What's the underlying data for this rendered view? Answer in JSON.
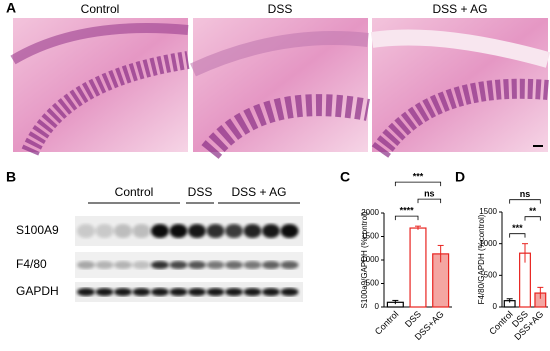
{
  "panel_labels": [
    "A",
    "B",
    "C",
    "D"
  ],
  "histology": {
    "titles": [
      "Control",
      "DSS",
      "DSS + AG"
    ]
  },
  "blot": {
    "groups": [
      "Control",
      "DSS",
      "DSS + AG"
    ],
    "rows": [
      "S100A9",
      "F4/80",
      "GAPDH"
    ]
  },
  "chart_data": [
    {
      "type": "bar",
      "y_label": "S100a9/GAPDH (%control)",
      "categories": [
        "Control",
        "DSS",
        "DSS+AG"
      ],
      "values": [
        100,
        1680,
        1130
      ],
      "errors": [
        40,
        40,
        180
      ],
      "colors": [
        "#000000",
        "#e8231f",
        "#e8231f"
      ],
      "fills": [
        "#ffffff",
        "#ffffff",
        "#f4a6a2"
      ],
      "ylim": [
        0,
        2000
      ],
      "yticks": [
        0,
        500,
        1000,
        1500,
        2000
      ],
      "comparisons": [
        {
          "label": "****",
          "between": [
            "Control",
            "DSS"
          ]
        },
        {
          "label": "ns",
          "between": [
            "DSS",
            "DSS+AG"
          ]
        },
        {
          "label": "***",
          "between": [
            "Control",
            "DSS+AG"
          ]
        }
      ]
    },
    {
      "type": "bar",
      "y_label": "F4/80/GAPDH (%control)",
      "categories": [
        "Control",
        "DSS",
        "DSS+AG"
      ],
      "values": [
        100,
        850,
        220
      ],
      "errors": [
        30,
        150,
        90
      ],
      "colors": [
        "#000000",
        "#e8231f",
        "#e8231f"
      ],
      "fills": [
        "#ffffff",
        "#ffffff",
        "#f4a6a2"
      ],
      "ylim": [
        0,
        1500
      ],
      "yticks": [
        0,
        500,
        1000,
        1500
      ],
      "comparisons": [
        {
          "label": "***",
          "between": [
            "Control",
            "DSS"
          ]
        },
        {
          "label": "**",
          "between": [
            "DSS",
            "DSS+AG"
          ]
        },
        {
          "label": "ns",
          "between": [
            "Control",
            "DSS+AG"
          ]
        }
      ]
    }
  ]
}
